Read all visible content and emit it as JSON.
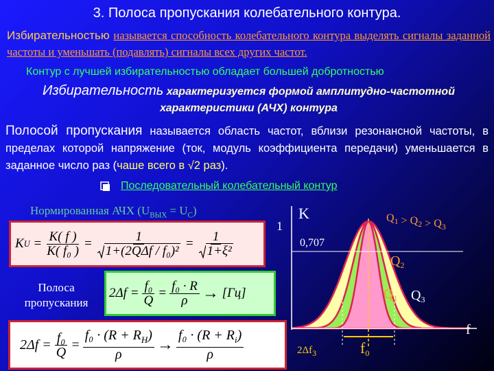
{
  "title": "3.  Полоса  пропускания  колебательного  контура.",
  "selectivity": {
    "term": "Избирательностью",
    "definition": "называется способность колебательного контура выделять сигналы заданной частоты и уменьшать (подавлять) сигналы всех других частот."
  },
  "note": "Контур с лучшей избирательностью обладает большей добротностью",
  "characteristic": {
    "term": "Избирательность",
    "rest": "характеризуется формой амплитудно-частотной характеристики (АЧХ) контура"
  },
  "passband": {
    "term": "Полосой пропускания",
    "rest": "называется область частот, вблизи резонансной частоты, в пределах которой напряжение (ток, модуль коэффициента передачи) уменьшается в заданное число раз (",
    "highlight": "чаше всего в √2 раз",
    "end": ")."
  },
  "bullet": "Последовательный колебательный контур",
  "caption": {
    "a": "Нормированная АЧХ (U",
    "sub1": "ВЫХ",
    "b": " = U",
    "sub2": "C",
    "c": ")"
  },
  "band_label": "Полоса пропускания",
  "formula1": {
    "lhs": "K",
    "lhs_sub": "U",
    "eq": "=",
    "num1": "K( f )",
    "den1": "K( f₀ )",
    "one": "1",
    "rad1": "1+(2QΔf / f₀)²",
    "rad2": "1+ξ²"
  },
  "formula2": {
    "lhs": "2Δf",
    "eq": "=",
    "num1": "f₀",
    "den1": "Q",
    "num2": "f₀ · R",
    "den2": "ρ",
    "arrow": "→",
    "unit": "[Гц]"
  },
  "formula3": {
    "lhs": "2Δf",
    "eq": "=",
    "num1": "f₀",
    "den1": "Q",
    "num2": "f₀ · (R + R",
    "sub2": "H",
    "close": ")",
    "den": "ρ",
    "arrow": "→",
    "num3": "f₀ · (R + R",
    "sub3": "i"
  },
  "graph": {
    "y_axis": "K",
    "one": "1",
    "level": "0,707",
    "x_axis": "f",
    "center": "f",
    "center_sub": "0",
    "width": "2Δf",
    "width_sub": "3",
    "order": {
      "q": "Q",
      "s1": "1",
      "gt": " > ",
      "s2": "2",
      "s3": "3"
    },
    "q1": "1",
    "q2": "2",
    "q3": "3"
  }
}
